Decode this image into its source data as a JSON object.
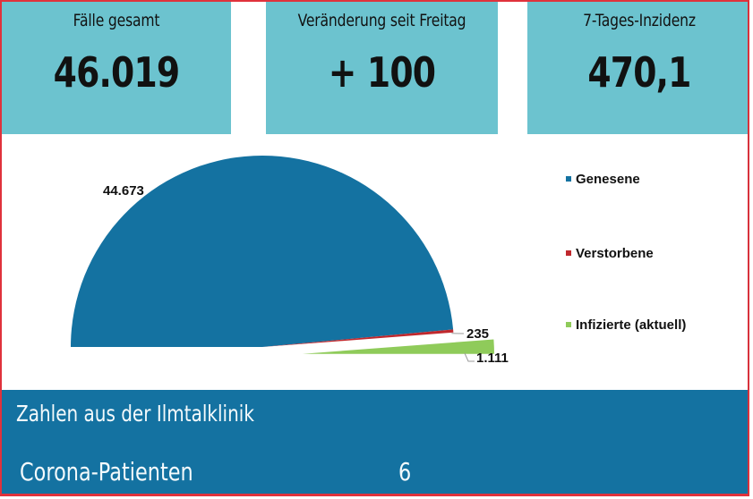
{
  "kpis": [
    {
      "label": "Fälle gesamt",
      "value": "46.019"
    },
    {
      "label": "Veränderung seit Freitag",
      "value": "+ 100"
    },
    {
      "label": "7-Tages-Inzidenz",
      "value": "470,1"
    }
  ],
  "chart_data": {
    "type": "pie",
    "variant": "half-pie",
    "title": "",
    "categories": [
      "Genesene",
      "Verstorbene",
      "Infizierte (aktuell)"
    ],
    "values": [
      44673,
      235,
      1111
    ],
    "data_labels": [
      "44.673",
      "235",
      "1.111"
    ],
    "colors": [
      "#1472a1",
      "#c0282d",
      "#8fcb5a"
    ],
    "exploded": [
      false,
      false,
      true
    ],
    "legend": "right"
  },
  "clinic": {
    "title": "Zahlen aus der Ilmtalklinik",
    "rows": [
      {
        "label": "Corona-Patienten",
        "value": "6"
      }
    ]
  },
  "colors": {
    "kpi_background": "#6cc3cf",
    "band_background": "#1472a1",
    "frame_border": "#e0323c"
  }
}
